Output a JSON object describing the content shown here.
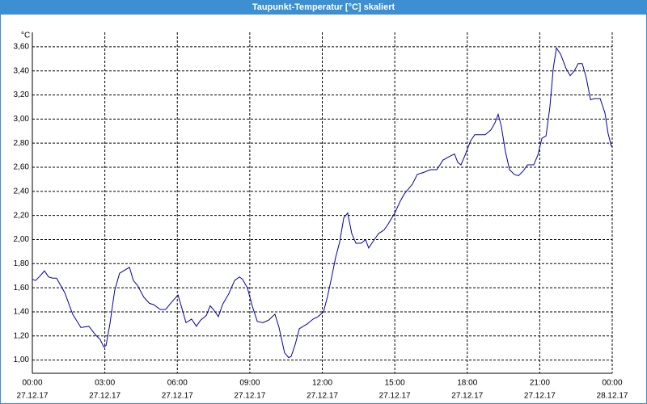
{
  "chart_data": {
    "type": "line",
    "title": "Taupunkt-Temperatur [°C] skaliert",
    "y_unit": "°C",
    "x": [
      0,
      0.13,
      0.33,
      0.5,
      0.67,
      0.84,
      1.0,
      1.34,
      1.67,
      2.01,
      2.34,
      2.61,
      2.81,
      2.95,
      3.05,
      3.21,
      3.41,
      3.61,
      4.02,
      4.18,
      4.35,
      4.62,
      4.85,
      5.02,
      5.29,
      5.52,
      5.76,
      6.03,
      6.16,
      6.36,
      6.59,
      6.79,
      6.96,
      7.2,
      7.36,
      7.53,
      7.7,
      7.87,
      8.13,
      8.37,
      8.57,
      8.7,
      8.9,
      9.1,
      9.31,
      9.54,
      9.77,
      10.04,
      10.21,
      10.44,
      10.61,
      10.71,
      10.88,
      11.05,
      11.38,
      11.62,
      11.82,
      12.05,
      12.22,
      12.38,
      12.55,
      12.72,
      12.89,
      13.05,
      13.22,
      13.39,
      13.62,
      13.79,
      13.92,
      14.12,
      14.33,
      14.56,
      14.73,
      15.0,
      15.23,
      15.4,
      15.73,
      15.93,
      16.23,
      16.47,
      16.74,
      17.0,
      17.27,
      17.47,
      17.61,
      17.74,
      17.91,
      18.14,
      18.31,
      18.51,
      18.74,
      18.98,
      19.15,
      19.28,
      19.41,
      19.58,
      19.75,
      19.95,
      20.12,
      20.32,
      20.49,
      20.75,
      20.92,
      21.09,
      21.26,
      21.42,
      21.56,
      21.69,
      21.86,
      22.09,
      22.26,
      22.43,
      22.59,
      22.76,
      22.93,
      23.1,
      23.26,
      23.5,
      23.7,
      23.83,
      23.97
    ],
    "series": [
      {
        "color": "#0000aa",
        "values": [
          1.67,
          1.66,
          1.7,
          1.74,
          1.69,
          1.68,
          1.68,
          1.56,
          1.38,
          1.27,
          1.28,
          1.21,
          1.17,
          1.11,
          1.12,
          1.3,
          1.58,
          1.72,
          1.77,
          1.66,
          1.62,
          1.52,
          1.47,
          1.46,
          1.42,
          1.42,
          1.48,
          1.54,
          1.45,
          1.31,
          1.34,
          1.28,
          1.33,
          1.37,
          1.45,
          1.41,
          1.36,
          1.46,
          1.55,
          1.66,
          1.69,
          1.67,
          1.6,
          1.45,
          1.32,
          1.31,
          1.33,
          1.38,
          1.27,
          1.06,
          1.02,
          1.03,
          1.13,
          1.26,
          1.3,
          1.34,
          1.36,
          1.4,
          1.53,
          1.68,
          1.85,
          1.98,
          2.18,
          2.22,
          2.05,
          1.97,
          1.97,
          2.0,
          1.93,
          1.99,
          2.05,
          2.08,
          2.13,
          2.22,
          2.32,
          2.38,
          2.46,
          2.54,
          2.56,
          2.58,
          2.58,
          2.66,
          2.69,
          2.71,
          2.64,
          2.62,
          2.7,
          2.82,
          2.87,
          2.87,
          2.87,
          2.91,
          2.97,
          3.04,
          2.94,
          2.73,
          2.58,
          2.54,
          2.53,
          2.57,
          2.62,
          2.62,
          2.7,
          2.84,
          2.86,
          3.1,
          3.42,
          3.59,
          3.54,
          3.42,
          3.36,
          3.4,
          3.46,
          3.46,
          3.34,
          3.16,
          3.17,
          3.17,
          3.05,
          2.88,
          2.77
        ]
      }
    ],
    "xlim": [
      0,
      24
    ],
    "xticks": [
      {
        "value": 0,
        "label": "00:00",
        "date": "27.12.17"
      },
      {
        "value": 3,
        "label": "03:00",
        "date": "27.12.17"
      },
      {
        "value": 6,
        "label": "06:00",
        "date": "27.12.17"
      },
      {
        "value": 9,
        "label": "09:00",
        "date": "27.12.17"
      },
      {
        "value": 12,
        "label": "12:00",
        "date": "27.12.17"
      },
      {
        "value": 15,
        "label": "15:00",
        "date": "27.12.17"
      },
      {
        "value": 18,
        "label": "18:00",
        "date": "27.12.17"
      },
      {
        "value": 21,
        "label": "21:00",
        "date": "27.12.17"
      },
      {
        "value": 24,
        "label": "00:00",
        "date": "28.12.17"
      }
    ],
    "ylim": [
      0.89,
      3.72
    ],
    "yticks": [
      {
        "value": 1.0,
        "label": "1,00"
      },
      {
        "value": 1.2,
        "label": "1,20"
      },
      {
        "value": 1.4,
        "label": "1,40"
      },
      {
        "value": 1.6,
        "label": "1,60"
      },
      {
        "value": 1.8,
        "label": "1,80"
      },
      {
        "value": 2.0,
        "label": "2,00"
      },
      {
        "value": 2.2,
        "label": "2,20"
      },
      {
        "value": 2.4,
        "label": "2,40"
      },
      {
        "value": 2.6,
        "label": "2,60"
      },
      {
        "value": 2.8,
        "label": "2,80"
      },
      {
        "value": 3.0,
        "label": "3,00"
      },
      {
        "value": 3.2,
        "label": "3,20"
      },
      {
        "value": 3.4,
        "label": "3,40"
      },
      {
        "value": 3.6,
        "label": "3,60"
      }
    ],
    "grid": true
  }
}
